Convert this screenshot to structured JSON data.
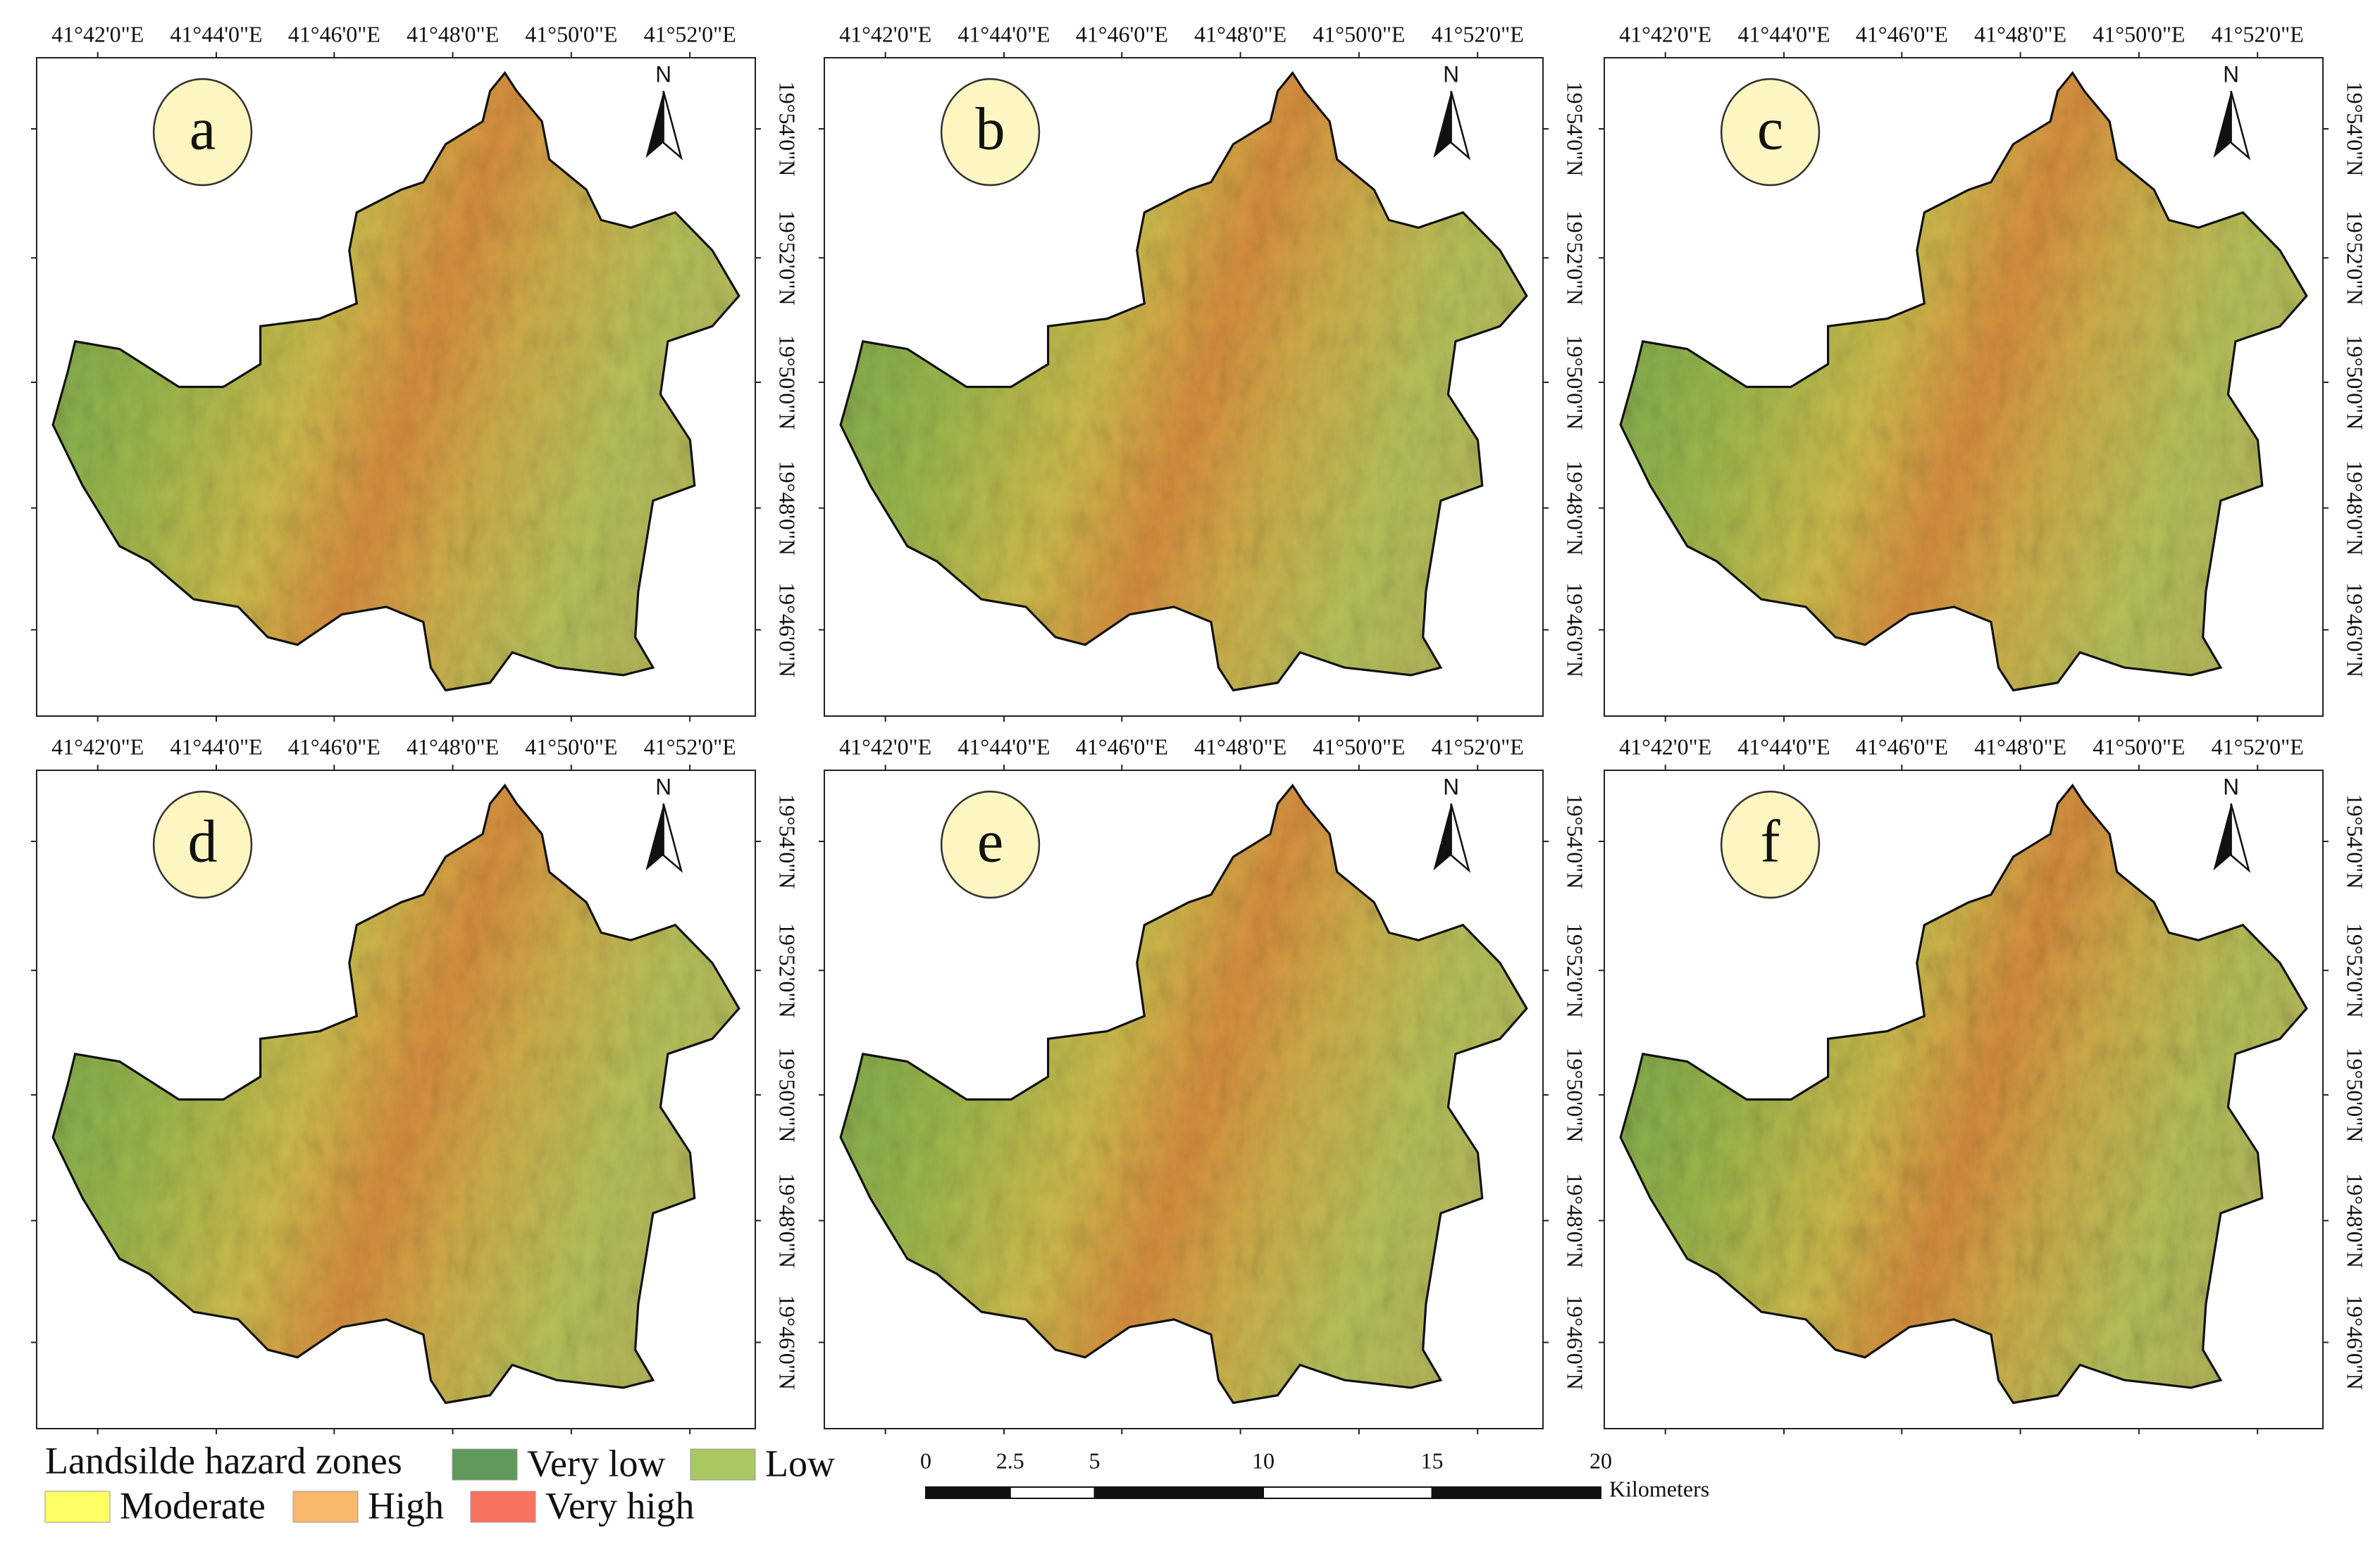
{
  "panels": [
    "a",
    "b",
    "c",
    "d",
    "e",
    "f"
  ],
  "north": "N",
  "lon_labels": [
    "41°42'0\"E",
    "41°44'0\"E",
    "41°46'0\"E",
    "41°48'0\"E",
    "41°50'0\"E",
    "41°52'0\"E"
  ],
  "lat_labels": [
    "19°54'0\"N",
    "19°52'0\"N",
    "19°50'0\"N",
    "19°48'0\"N",
    "19°46'0\"N"
  ],
  "legend": {
    "title": "Landsilde hazard zones",
    "items": [
      {
        "name": "Very low",
        "color": "#5f9a5c"
      },
      {
        "name": "Low",
        "color": "#a9c862"
      },
      {
        "name": "Moderate",
        "color": "#ffff66"
      },
      {
        "name": "High",
        "color": "#f9b86a"
      },
      {
        "name": "Very high",
        "color": "#f8725f"
      }
    ]
  },
  "scale_bar": {
    "ticks": [
      0,
      2.5,
      5,
      10,
      15,
      20
    ],
    "unit": "Kilometers"
  }
}
